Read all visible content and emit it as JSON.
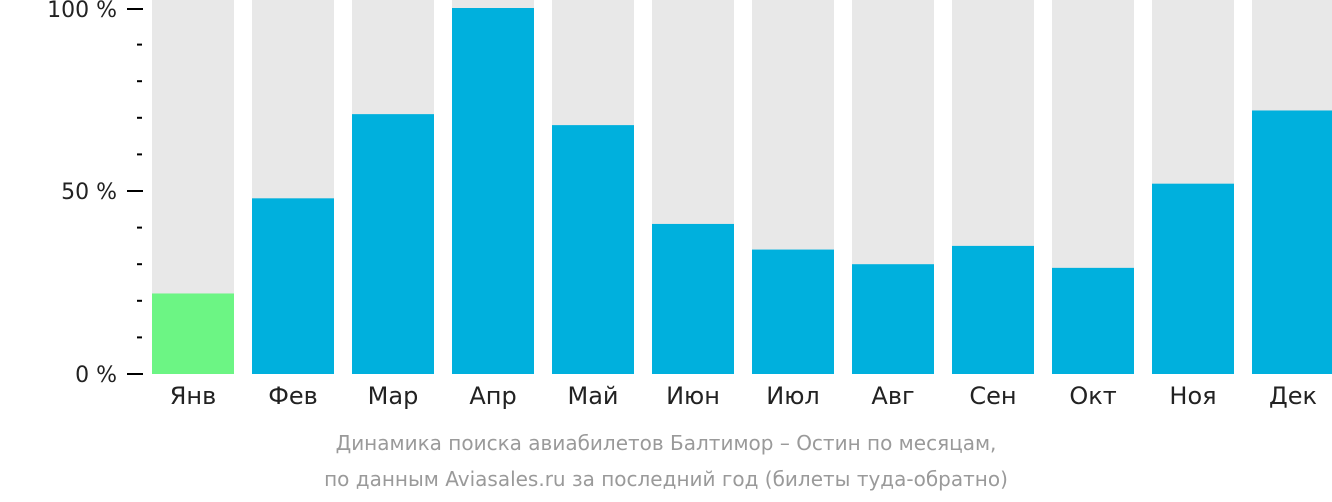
{
  "chart_data": {
    "type": "bar",
    "categories": [
      "Янв",
      "Фев",
      "Мар",
      "Апр",
      "Май",
      "Июн",
      "Июл",
      "Авг",
      "Сен",
      "Окт",
      "Ноя",
      "Дек"
    ],
    "values": [
      22,
      48,
      71,
      100,
      68,
      41,
      34,
      30,
      35,
      29,
      52,
      72
    ],
    "ylim": [
      0,
      100
    ],
    "y_ticks": [
      "0 %",
      "50 %",
      "100 %"
    ],
    "y_tick_values": [
      0,
      50,
      100
    ],
    "minor_tick_step": 10,
    "colors": {
      "bar": "#00b0dd",
      "highlight_bar": "#6cf584",
      "track": "#e8e8e8",
      "axis": "#000000",
      "caption": "#9a9a9a"
    },
    "highlight_index": 0
  },
  "caption": {
    "line1": "Динамика поиска авиабилетов Балтимор – Остин по месяцам,",
    "line2": "по данным Aviasales.ru за последний год (билеты туда-обратно)"
  }
}
